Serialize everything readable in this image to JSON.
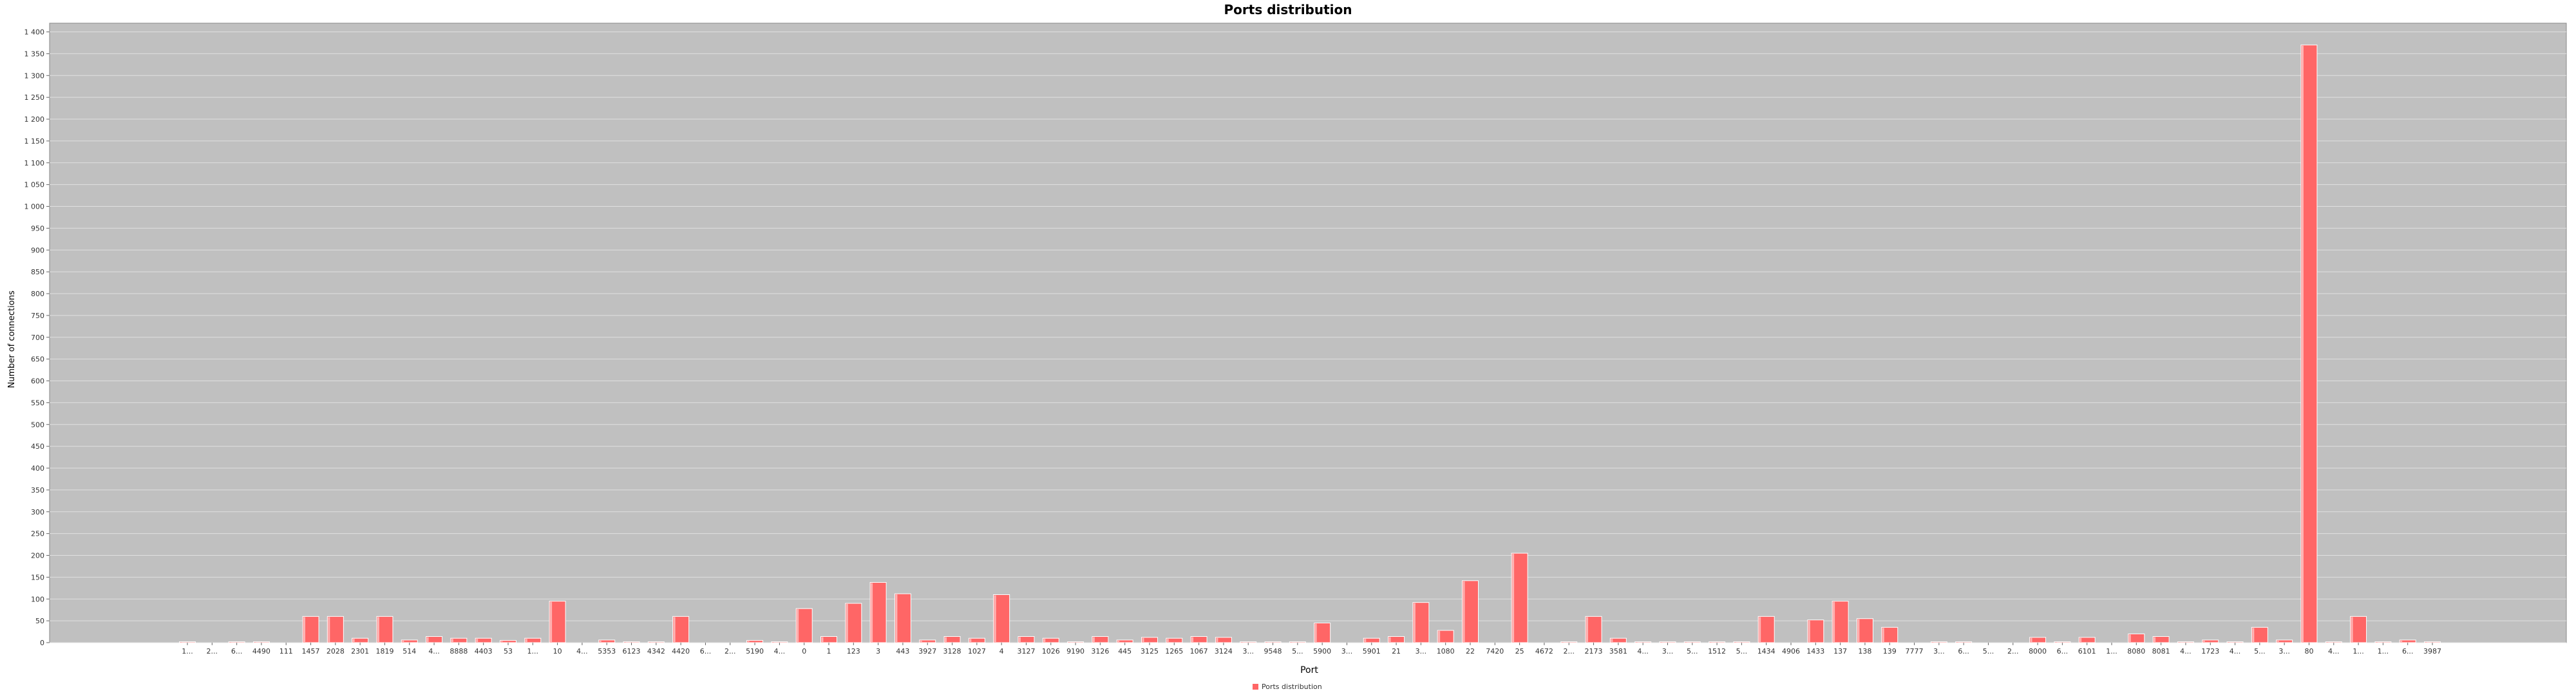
{
  "chart_data": {
    "type": "bar",
    "title": "Ports distribution",
    "xlabel": "Port",
    "ylabel": "Number of connections",
    "ylim": [
      0,
      1420
    ],
    "yticks": [
      0,
      50,
      100,
      150,
      200,
      250,
      300,
      350,
      400,
      450,
      500,
      550,
      600,
      650,
      700,
      750,
      800,
      850,
      900,
      950,
      1000,
      1050,
      1100,
      1150,
      1200,
      1250,
      1300,
      1350,
      1400
    ],
    "ytick_labels": [
      "0",
      "50",
      "100",
      "150",
      "200",
      "250",
      "300",
      "350",
      "400",
      "450",
      "500",
      "550",
      "600",
      "650",
      "700",
      "750",
      "800",
      "850",
      "900",
      "950",
      "1 000",
      "1 050",
      "1 100",
      "1 150",
      "1 200",
      "1 250",
      "1 300",
      "1 350",
      "1 400"
    ],
    "grid": true,
    "legend_position": "bottom-center",
    "colors": {
      "bar": "#ff6666",
      "plot_bg": "#c0c0c0",
      "grid": "#e0e0e0"
    },
    "series": [
      {
        "name": "Ports distribution",
        "categories": [
          "1...",
          "2...",
          "6...",
          "4490",
          "111",
          "1457",
          "2028",
          "2301",
          "1819",
          "514",
          "4...",
          "8888",
          "4403",
          "53",
          "1...",
          "10",
          "4...",
          "5353",
          "6123",
          "4342",
          "4420",
          "6...",
          "2...",
          "5190",
          "4...",
          "0",
          "1",
          "123",
          "3",
          "443",
          "3927",
          "3128",
          "1027",
          "4",
          "3127",
          "1026",
          "9190",
          "3126",
          "445",
          "3125",
          "1265",
          "1067",
          "3124",
          "3...",
          "9548",
          "5...",
          "5900",
          "3...",
          "5901",
          "21",
          "3...",
          "1080",
          "22",
          "7420",
          "25",
          "4672",
          "2...",
          "2173",
          "3581",
          "4...",
          "3...",
          "5...",
          "1512",
          "5...",
          "1434",
          "4906",
          "1433",
          "137",
          "138",
          "139",
          "7777",
          "3...",
          "6...",
          "5...",
          "2...",
          "8000",
          "6...",
          "6101",
          "1...",
          "8080",
          "8081",
          "4...",
          "1723",
          "4...",
          "5...",
          "3...",
          "80",
          "4...",
          "1...",
          "1...",
          "6...",
          "3987"
        ],
        "values": [
          2,
          0,
          2,
          2,
          0,
          60,
          60,
          10,
          60,
          6,
          14,
          10,
          10,
          5,
          10,
          95,
          0,
          6,
          2,
          2,
          60,
          0,
          0,
          5,
          2,
          78,
          14,
          90,
          138,
          112,
          6,
          14,
          10,
          110,
          14,
          10,
          2,
          14,
          6,
          12,
          10,
          14,
          12,
          2,
          2,
          2,
          45,
          0,
          10,
          14,
          92,
          28,
          142,
          0,
          205,
          0,
          2,
          60,
          10,
          2,
          2,
          2,
          2,
          2,
          60,
          0,
          52,
          95,
          55,
          35,
          0,
          2,
          2,
          0,
          0,
          12,
          2,
          12,
          0,
          20,
          14,
          2,
          6,
          2,
          35,
          6,
          1370,
          2,
          60,
          2,
          6,
          2
        ]
      }
    ]
  }
}
